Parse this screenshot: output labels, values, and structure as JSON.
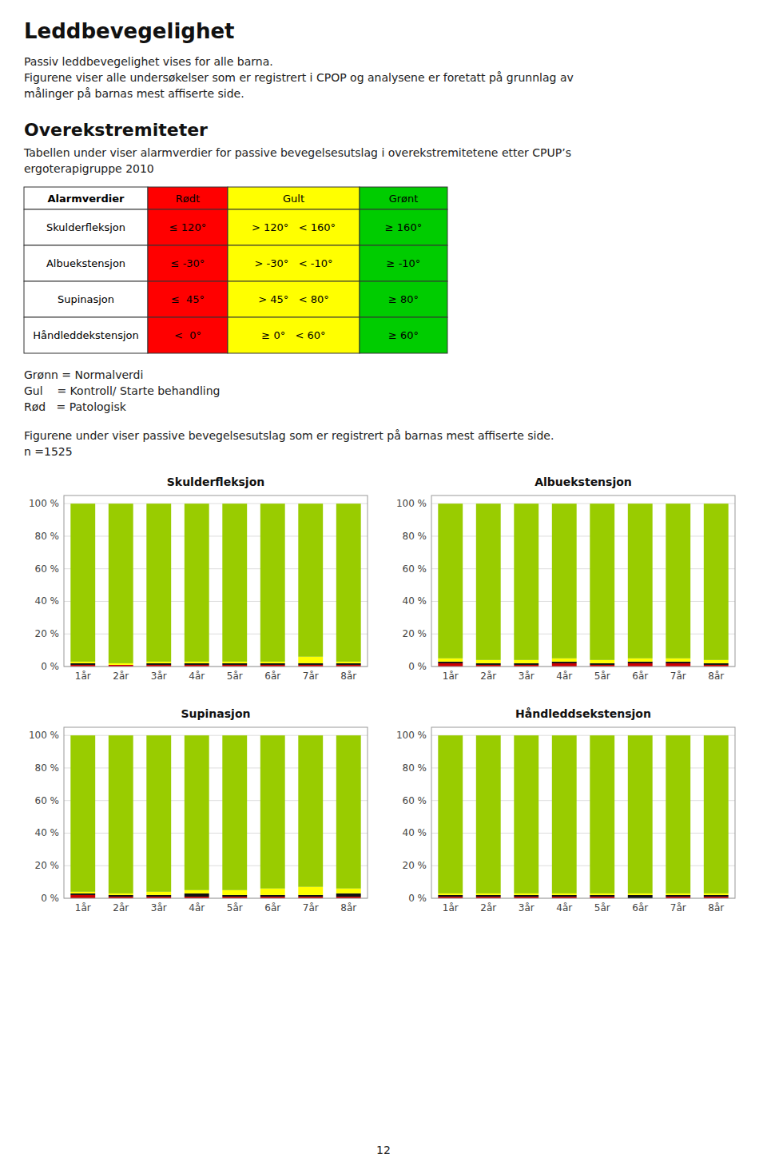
{
  "title": "Leddbevegelighet",
  "subtitle": [
    "Passiv leddbevegelighet vises for alle barna.",
    "Figurene viser alle undersøkelser som er registrert i CPOP og analysene er foretatt på grunnlag av",
    "målinger på barnas mest affiserte side."
  ],
  "section_title": "Overekstremiteter",
  "section_text": [
    "Tabellen under viser alarmverdier for passive bevegelsesutslag i overekstremitetene etter CPUP’s",
    "ergoterapigruppe 2010"
  ],
  "table": {
    "headers": [
      "Alarmverdier",
      "Rødt",
      "Gult",
      "Grønt"
    ],
    "rows": [
      [
        "Skulderfleksjon",
        "≤ 120°",
        "> 120°   < 160°",
        "≥ 160°"
      ],
      [
        "Albuekstensjon",
        "≤ -30°",
        "> -30°   < -10°",
        "≥ -10°"
      ],
      [
        "Supinasjon",
        "≤  45°",
        "> 45°   < 80°",
        "≥ 80°"
      ],
      [
        "Håndleddekstensjon",
        "<  0°",
        "≥ 0°   < 60°",
        "≥ 60°"
      ]
    ],
    "colors": [
      "#FFFFFF",
      "#FF0000",
      "#FFFF00",
      "#00CC00"
    ]
  },
  "legend_lines": [
    "Grønn = Normalverdi",
    "Gul    = Kontroll/ Starte behandling",
    "Rød   = Patologisk"
  ],
  "figure_text": [
    "Figurene under viser passive bevegelsesutslag som er registrert på barnas mest affiserte side.",
    "n =1525"
  ],
  "page_number": "12",
  "chart_data": [
    {
      "type": "bar",
      "stacked": true,
      "grid": true,
      "title": "Skulderfleksjon",
      "categories": [
        "1år",
        "2år",
        "3år",
        "4år",
        "5år",
        "6år",
        "7år",
        "8år"
      ],
      "ylim": [
        0,
        105
      ],
      "yticks": [
        {
          "value": 0,
          "label": "0 %"
        },
        {
          "value": 20,
          "label": "20 %"
        },
        {
          "value": 40,
          "label": "40 %"
        },
        {
          "value": 60,
          "label": "60 %"
        },
        {
          "value": 80,
          "label": "80 %"
        },
        {
          "value": 100,
          "label": "100 %"
        }
      ],
      "series": [
        {
          "color": "#CC0000",
          "values": [
            1,
            1,
            1,
            1,
            1,
            1,
            1,
            1
          ]
        },
        {
          "color": "#111111",
          "values": [
            1,
            0,
            1,
            1,
            1,
            1,
            1,
            1
          ]
        },
        {
          "color": "#FFFF00",
          "values": [
            1,
            1,
            1,
            1,
            1,
            1,
            4,
            1
          ]
        },
        {
          "color": "#99CC00",
          "values": [
            97,
            98,
            97,
            97,
            97,
            97,
            94,
            97
          ]
        },
        {
          "color": "#BEBEBE",
          "values": [
            0,
            0,
            0,
            0,
            0,
            0,
            0,
            0
          ]
        }
      ]
    },
    {
      "type": "bar",
      "stacked": true,
      "grid": true,
      "title": "Albuekstensjon",
      "categories": [
        "1år",
        "2år",
        "3år",
        "4år",
        "5år",
        "6år",
        "7år",
        "8år"
      ],
      "ylim": [
        0,
        105
      ],
      "yticks": [
        {
          "value": 0,
          "label": "0 %"
        },
        {
          "value": 20,
          "label": "20 %"
        },
        {
          "value": 40,
          "label": "40 %"
        },
        {
          "value": 60,
          "label": "60 %"
        },
        {
          "value": 80,
          "label": "80 %"
        },
        {
          "value": 100,
          "label": "100 %"
        }
      ],
      "series": [
        {
          "color": "#CC0000",
          "values": [
            2,
            1,
            1,
            2,
            1,
            2,
            2,
            1
          ]
        },
        {
          "color": "#111111",
          "values": [
            1,
            1,
            1,
            1,
            1,
            1,
            1,
            1
          ]
        },
        {
          "color": "#FFFF00",
          "values": [
            2,
            2,
            2,
            2,
            2,
            2,
            2,
            2
          ]
        },
        {
          "color": "#99CC00",
          "values": [
            95,
            96,
            96,
            95,
            96,
            95,
            95,
            96
          ]
        },
        {
          "color": "#BEBEBE",
          "values": [
            0,
            0,
            0,
            0,
            0,
            0,
            0,
            0
          ]
        }
      ]
    },
    {
      "type": "bar",
      "stacked": true,
      "grid": true,
      "title": "Supinasjon",
      "categories": [
        "1år",
        "2år",
        "3år",
        "4år",
        "5år",
        "6år",
        "7år",
        "8år"
      ],
      "ylim": [
        0,
        105
      ],
      "yticks": [
        {
          "value": 0,
          "label": "0 %"
        },
        {
          "value": 20,
          "label": "20 %"
        },
        {
          "value": 40,
          "label": "40 %"
        },
        {
          "value": 60,
          "label": "60 %"
        },
        {
          "value": 80,
          "label": "80 %"
        },
        {
          "value": 100,
          "label": "100 %"
        }
      ],
      "series": [
        {
          "color": "#CC0000",
          "values": [
            2,
            1,
            1,
            1,
            1,
            1,
            1,
            1
          ]
        },
        {
          "color": "#111111",
          "values": [
            1,
            1,
            1,
            2,
            1,
            1,
            1,
            2
          ]
        },
        {
          "color": "#FFFF00",
          "values": [
            1,
            1,
            2,
            2,
            3,
            4,
            5,
            3
          ]
        },
        {
          "color": "#99CC00",
          "values": [
            96,
            97,
            96,
            95,
            95,
            94,
            93,
            94
          ]
        },
        {
          "color": "#BEBEBE",
          "values": [
            0,
            0,
            0,
            0,
            0,
            0,
            0,
            0
          ]
        }
      ]
    },
    {
      "type": "bar",
      "stacked": true,
      "grid": true,
      "title": "Håndleddsekstensjon",
      "categories": [
        "1år",
        "2år",
        "3år",
        "4år",
        "5år",
        "6år",
        "7år",
        "8år"
      ],
      "ylim": [
        0,
        105
      ],
      "yticks": [
        {
          "value": 0,
          "label": "0 %"
        },
        {
          "value": 20,
          "label": "20 %"
        },
        {
          "value": 40,
          "label": "40 %"
        },
        {
          "value": 60,
          "label": "60 %"
        },
        {
          "value": 80,
          "label": "80 %"
        },
        {
          "value": 100,
          "label": "100 %"
        }
      ],
      "series": [
        {
          "color": "#CC0000",
          "values": [
            1,
            1,
            1,
            1,
            1,
            0,
            1,
            1
          ]
        },
        {
          "color": "#111111",
          "values": [
            1,
            1,
            1,
            1,
            1,
            2,
            1,
            1
          ]
        },
        {
          "color": "#FFFF00",
          "values": [
            1,
            1,
            1,
            1,
            1,
            1,
            1,
            1
          ]
        },
        {
          "color": "#99CC00",
          "values": [
            97,
            97,
            97,
            97,
            97,
            97,
            97,
            97
          ]
        },
        {
          "color": "#BEBEBE",
          "values": [
            0,
            0,
            0,
            0,
            0,
            0,
            0,
            0
          ]
        }
      ]
    }
  ]
}
